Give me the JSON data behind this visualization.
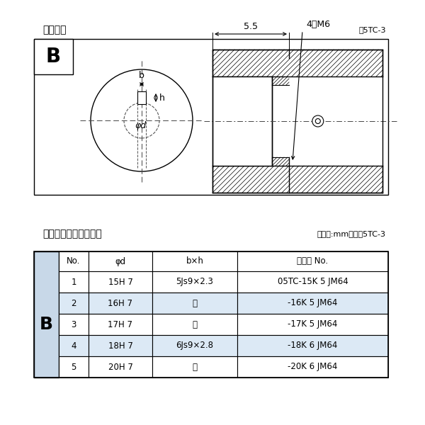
{
  "title_diagram": "軸穴形状",
  "fig_label": "図5TC-3",
  "table_title": "軸穴形状コード一覧表",
  "table_unit": "（単位:mm）　表5TC-3",
  "dim_55": "5.5",
  "dim_4m6": "4－M6",
  "label_b": "b",
  "label_h": "h",
  "label_phid": "φd",
  "label_B": "B",
  "col_headers": [
    "No.",
    "φd",
    "b×h",
    "コード No."
  ],
  "rows": [
    [
      "1",
      "15H 7",
      "5Js9×2.3",
      "05TC-15K 5 JM64"
    ],
    [
      "2",
      "16H 7",
      "「",
      "-16K 5 JM64"
    ],
    [
      "3",
      "17H 7",
      "「",
      "-17K 5 JM64"
    ],
    [
      "4",
      "18H 7",
      "6Js9×2.8",
      "-18K 6 JM64"
    ],
    [
      "5",
      "20H 7",
      "「",
      "-20K 6 JM64"
    ]
  ],
  "row_colors": [
    "#ffffff",
    "#dce9f5",
    "#ffffff",
    "#dce9f5",
    "#ffffff"
  ],
  "B_cell_color": "#c8d8e8",
  "bg_color": "#ffffff",
  "ditto": "「"
}
